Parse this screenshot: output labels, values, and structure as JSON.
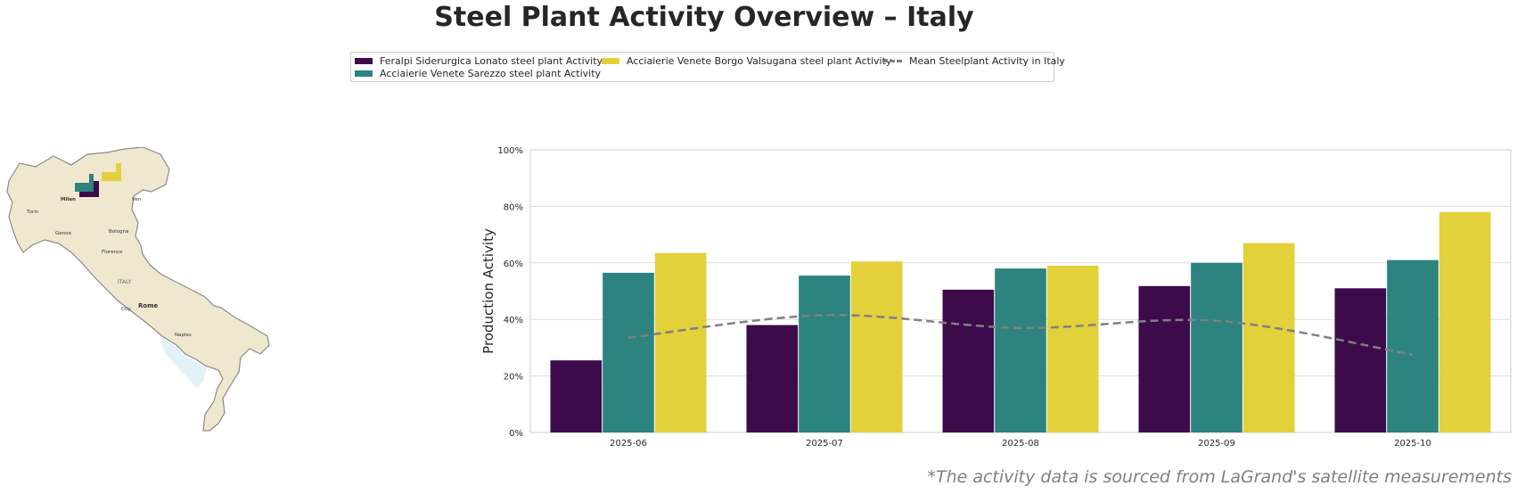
{
  "title": "Steel Plant Activity Overview – Italy",
  "legend": [
    {
      "label": "Feralpi Siderurgica Lonato steel plant Activity",
      "color": "#3d0a4a",
      "kind": "bar"
    },
    {
      "label": "Acciaierie Venete Sarezzo steel plant Activity",
      "color": "#2c8380",
      "kind": "bar"
    },
    {
      "label": "Acciaierie Venete Borgo Valsugana steel plant Activity",
      "color": "#e2d13b",
      "kind": "bar"
    },
    {
      "label": "Mean Steelplant Activity in Italy",
      "color": "#808080",
      "kind": "dashed-line"
    }
  ],
  "map": {
    "labels": [
      "Milan",
      "Turin",
      "Genoa",
      "Bologna",
      "Florence",
      "ITALY",
      "Rome",
      "City",
      "Naples",
      "Ven"
    ]
  },
  "chart_data": {
    "type": "bar",
    "ylabel": "Production Activity",
    "xlabel": "",
    "ylim": [
      0,
      100
    ],
    "yticks": [
      "0%",
      "20%",
      "40%",
      "60%",
      "80%",
      "100%"
    ],
    "categories": [
      "2025-06",
      "2025-07",
      "2025-08",
      "2025-09",
      "2025-10"
    ],
    "series": [
      {
        "name": "Feralpi Siderurgica Lonato steel plant Activity",
        "color": "#3d0a4a",
        "values": [
          25.5,
          38,
          50.5,
          51.8,
          51
        ]
      },
      {
        "name": "Acciaierie Venete Sarezzo steel plant Activity",
        "color": "#2c8380",
        "values": [
          56.5,
          55.5,
          58,
          60,
          61
        ]
      },
      {
        "name": "Acciaierie Venete Borgo Valsugana steel plant Activity",
        "color": "#e2d13b",
        "values": [
          63.5,
          60.5,
          59,
          67,
          78
        ]
      }
    ],
    "line": {
      "name": "Mean Steelplant Activity in Italy",
      "color": "#808080",
      "style": "dashed",
      "values": [
        33.5,
        41.5,
        37,
        39.5,
        27.5
      ]
    },
    "grid": true
  },
  "footnote": "*The activity data is sourced from LaGrand's satellite measurements"
}
